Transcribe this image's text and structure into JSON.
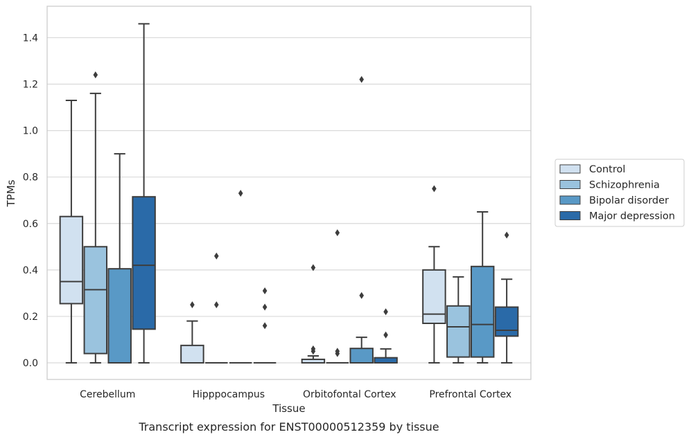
{
  "caption": "Transcript expression for ENST00000512359 by tissue",
  "chart_data": {
    "type": "box",
    "xlabel": "Tissue",
    "ylabel": "TPMs",
    "ylim": [
      -0.07,
      1.54
    ],
    "yticks": [
      "0.0",
      "0.2",
      "0.4",
      "0.6",
      "0.8",
      "1.0",
      "1.2",
      "1.4"
    ],
    "grid": "horizontal",
    "legend_position": "outside-right",
    "categories": [
      "Cerebellum",
      "Hipppocampus",
      "Orbitofontal Cortex",
      "Prefrontal Cortex"
    ],
    "series": [
      {
        "name": "Control",
        "color": "#d1e1f0",
        "boxes": [
          {
            "whislo": 0.0,
            "q1": 0.255,
            "med": 0.35,
            "q3": 0.63,
            "whishi": 1.13,
            "fliers": []
          },
          {
            "whislo": 0.0,
            "q1": 0.0,
            "med": 0.0,
            "q3": 0.075,
            "whishi": 0.18,
            "fliers": [
              0.25
            ]
          },
          {
            "whislo": 0.0,
            "q1": 0.0,
            "med": 0.0,
            "q3": 0.015,
            "whishi": 0.03,
            "fliers": [
              0.05,
              0.06,
              0.41
            ]
          },
          {
            "whislo": 0.0,
            "q1": 0.17,
            "med": 0.21,
            "q3": 0.4,
            "whishi": 0.5,
            "fliers": [
              0.75
            ]
          }
        ]
      },
      {
        "name": "Schizophrenia",
        "color": "#9ac3de",
        "boxes": [
          {
            "whislo": 0.0,
            "q1": 0.04,
            "med": 0.315,
            "q3": 0.5,
            "whishi": 1.16,
            "fliers": [
              1.24
            ]
          },
          {
            "whislo": 0.0,
            "q1": 0.0,
            "med": 0.0,
            "q3": 0.0,
            "whishi": 0.0,
            "fliers": [
              0.25,
              0.46
            ]
          },
          {
            "whislo": 0.0,
            "q1": 0.0,
            "med": 0.0,
            "q3": 0.0,
            "whishi": 0.0,
            "fliers": [
              0.04,
              0.05,
              0.56
            ]
          },
          {
            "whislo": 0.0,
            "q1": 0.025,
            "med": 0.155,
            "q3": 0.245,
            "whishi": 0.37,
            "fliers": []
          }
        ]
      },
      {
        "name": "Bipolar disorder",
        "color": "#5999c6",
        "boxes": [
          {
            "whislo": 0.0,
            "q1": 0.0,
            "med": 0.0,
            "q3": 0.405,
            "whishi": 0.9,
            "fliers": []
          },
          {
            "whislo": 0.0,
            "q1": 0.0,
            "med": 0.0,
            "q3": 0.0,
            "whishi": 0.0,
            "fliers": [
              0.73
            ]
          },
          {
            "whislo": 0.0,
            "q1": 0.0,
            "med": 0.0,
            "q3": 0.062,
            "whishi": 0.11,
            "fliers": [
              0.29,
              1.22
            ]
          },
          {
            "whislo": 0.0,
            "q1": 0.025,
            "med": 0.165,
            "q3": 0.415,
            "whishi": 0.65,
            "fliers": []
          }
        ]
      },
      {
        "name": "Major depression",
        "color": "#2a6aa8",
        "boxes": [
          {
            "whislo": 0.0,
            "q1": 0.145,
            "med": 0.42,
            "q3": 0.715,
            "whishi": 1.46,
            "fliers": []
          },
          {
            "whislo": 0.0,
            "q1": 0.0,
            "med": 0.0,
            "q3": 0.0,
            "whishi": 0.0,
            "fliers": [
              0.16,
              0.24,
              0.31
            ]
          },
          {
            "whislo": 0.0,
            "q1": 0.0,
            "med": 0.0,
            "q3": 0.022,
            "whishi": 0.06,
            "fliers": [
              0.12,
              0.22
            ]
          },
          {
            "whislo": 0.0,
            "q1": 0.115,
            "med": 0.14,
            "q3": 0.24,
            "whishi": 0.36,
            "fliers": [
              0.55
            ]
          }
        ]
      }
    ]
  }
}
